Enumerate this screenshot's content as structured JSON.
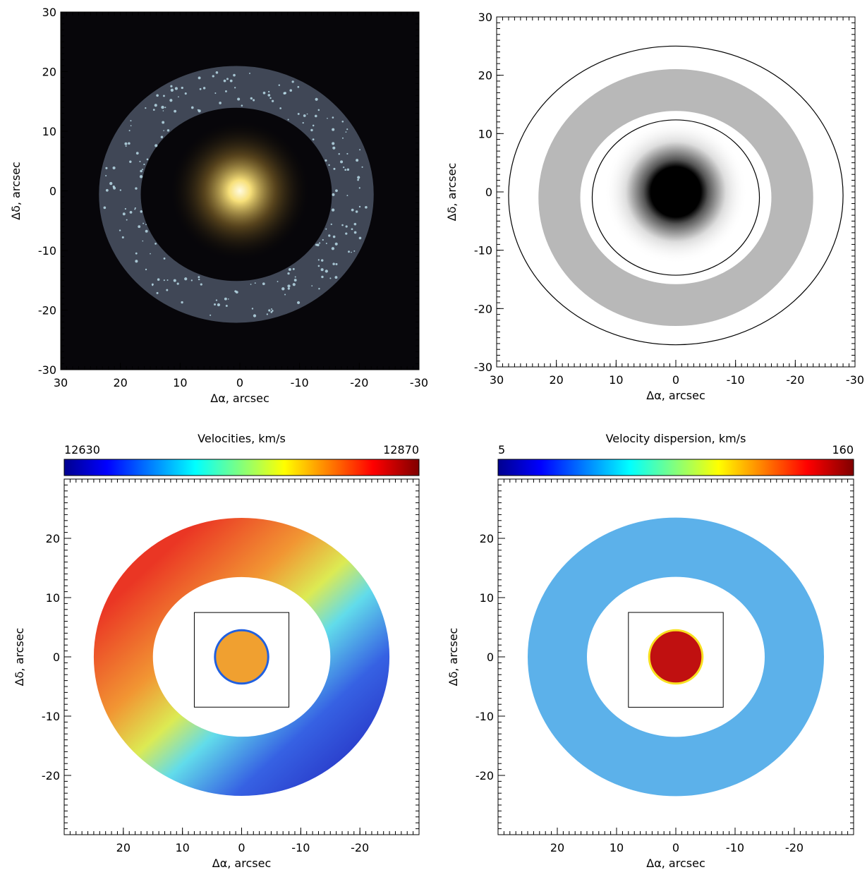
{
  "chart_data": [
    {
      "type": "image",
      "colormap": "rgb",
      "xlabel": "Δα, arcsec",
      "ylabel": "Δδ, arcsec",
      "xlim": [
        30,
        -30
      ],
      "ylim": [
        -30,
        30
      ],
      "xticks": [
        30,
        20,
        10,
        0,
        -10,
        -20,
        -30
      ],
      "yticks": [
        -30,
        -20,
        -10,
        0,
        10,
        20,
        30
      ]
    },
    {
      "type": "image",
      "colormap": "gray_r",
      "xlabel": "Δα, arcsec",
      "ylabel": "Δδ, arcsec",
      "xlim": [
        30,
        -30
      ],
      "ylim": [
        -30,
        30
      ],
      "xticks": [
        30,
        20,
        10,
        0,
        -10,
        -20,
        -30
      ],
      "yticks": [
        -30,
        -20,
        -10,
        0,
        10,
        20,
        30
      ]
    },
    {
      "type": "image",
      "colormap": "jet",
      "title": "Velocities, km/s",
      "clim": [
        12630,
        12870
      ],
      "xlabel": "Δα, arcsec",
      "ylabel": "Δδ, arcsec",
      "xlim": [
        30,
        -30
      ],
      "ylim": [
        -30,
        30
      ],
      "xticks": [
        20,
        10,
        0,
        -10,
        -20
      ],
      "yticks": [
        -20,
        -10,
        0,
        10,
        20
      ]
    },
    {
      "type": "image",
      "colormap": "jet",
      "title": "Velocity dispersion, km/s",
      "clim": [
        5,
        160
      ],
      "xlabel": "Δα, arcsec",
      "ylabel": "Δδ, arcsec",
      "xlim": [
        30,
        -30
      ],
      "ylim": [
        -30,
        30
      ],
      "xticks": [
        20,
        10,
        0,
        -10,
        -20
      ],
      "yticks": [
        -20,
        -10,
        0,
        10,
        20
      ]
    }
  ]
}
